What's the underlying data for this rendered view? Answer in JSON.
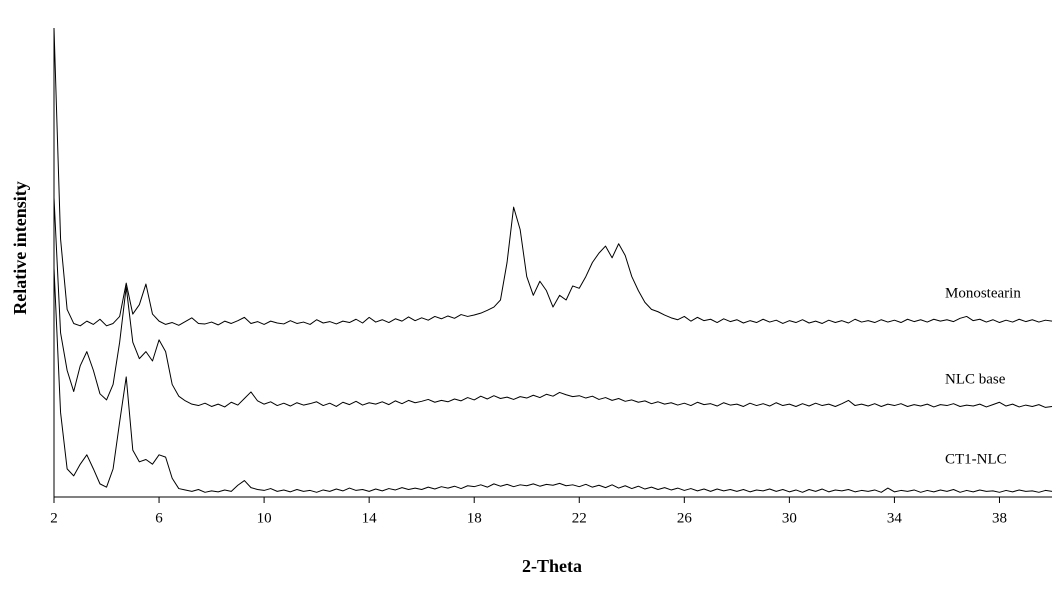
{
  "chart_data": {
    "type": "line",
    "x_label": "2-Theta",
    "y_label": "Relative intensity",
    "xlim": [
      2,
      40
    ],
    "xticks": [
      2,
      6,
      10,
      14,
      18,
      22,
      26,
      30,
      34,
      38
    ],
    "ylim": [
      0,
      100
    ],
    "x": [
      2,
      2.25,
      2.5,
      2.75,
      3,
      3.25,
      3.5,
      3.75,
      4,
      4.25,
      4.5,
      4.75,
      5,
      5.25,
      5.5,
      5.75,
      6,
      6.25,
      6.5,
      6.75,
      7,
      7.25,
      7.5,
      7.75,
      8,
      8.25,
      8.5,
      8.75,
      9,
      9.25,
      9.5,
      9.75,
      10,
      10.25,
      10.5,
      10.75,
      11,
      11.25,
      11.5,
      11.75,
      12,
      12.25,
      12.5,
      12.75,
      13,
      13.25,
      13.5,
      13.75,
      14,
      14.25,
      14.5,
      14.75,
      15,
      15.25,
      15.5,
      15.75,
      16,
      16.25,
      16.5,
      16.75,
      17,
      17.25,
      17.5,
      17.75,
      18,
      18.25,
      18.5,
      18.75,
      19,
      19.25,
      19.5,
      19.75,
      20,
      20.25,
      20.5,
      20.75,
      21,
      21.25,
      21.5,
      21.75,
      22,
      22.25,
      22.5,
      22.75,
      23,
      23.25,
      23.5,
      23.75,
      24,
      24.25,
      24.5,
      24.75,
      25,
      25.25,
      25.5,
      25.75,
      26,
      26.25,
      26.5,
      26.75,
      27,
      27.25,
      27.5,
      27.75,
      28,
      28.25,
      28.5,
      28.75,
      29,
      29.25,
      29.5,
      29.75,
      30,
      30.25,
      30.5,
      30.75,
      31,
      31.25,
      31.5,
      31.75,
      32,
      32.25,
      32.5,
      32.75,
      33,
      33.25,
      33.5,
      33.75,
      34,
      34.25,
      34.5,
      34.75,
      35,
      35.25,
      35.5,
      35.75,
      36,
      36.25,
      36.5,
      36.75,
      37,
      37.25,
      37.5,
      37.75,
      38,
      38.25,
      38.5,
      38.75,
      39,
      39.25,
      39.5,
      39.75,
      40
    ],
    "series": [
      {
        "name": "Monostearin",
        "color": "#000000",
        "values": [
          100,
          55,
          40,
          37,
          36.5,
          37.5,
          36.8,
          37.9,
          36.5,
          37,
          38.5,
          45.6,
          39,
          41,
          45.4,
          39,
          37.5,
          36.8,
          37.2,
          36.6,
          37.4,
          38.2,
          37,
          36.9,
          37.3,
          36.7,
          37.5,
          37,
          37.6,
          38.3,
          37,
          37.4,
          36.8,
          37.5,
          37.1,
          36.9,
          37.6,
          37,
          37.3,
          36.8,
          37.8,
          37.1,
          37.4,
          36.9,
          37.5,
          37.2,
          37.9,
          37.1,
          38.3,
          37.3,
          37.8,
          37.2,
          38,
          37.5,
          38.4,
          37.6,
          38.2,
          37.7,
          38.5,
          38,
          38.6,
          38.1,
          38.9,
          38.5,
          38.8,
          39.2,
          39.8,
          40.5,
          42,
          50,
          61.8,
          57,
          47,
          43,
          46,
          44,
          40.5,
          43,
          42,
          45,
          44.5,
          47,
          50,
          52,
          53.5,
          51,
          54,
          51.5,
          47,
          44,
          41.5,
          40,
          39.5,
          38.8,
          38.2,
          37.8,
          38.5,
          37.5,
          38.3,
          37.6,
          37.9,
          37.2,
          38,
          37.4,
          37.8,
          37.1,
          37.6,
          37.2,
          37.9,
          37.3,
          37.7,
          37,
          37.6,
          37.2,
          37.8,
          37.1,
          37.5,
          37,
          37.7,
          37.2,
          37.6,
          37.1,
          37.9,
          37.3,
          37.6,
          37.2,
          37.8,
          37.3,
          37.7,
          37.2,
          37.9,
          37.4,
          37.8,
          37.3,
          37.9,
          37.5,
          37.8,
          37.4,
          38.1,
          38.5,
          37.6,
          37.9,
          37.3,
          37.8,
          37.2,
          37.7,
          37.3,
          37.9,
          37.4,
          37.8,
          37.3,
          37.7,
          37.5
        ]
      },
      {
        "name": "NLC base",
        "color": "#000000",
        "values": [
          63.8,
          35,
          27,
          22.5,
          28,
          31,
          27,
          22,
          20.7,
          24,
          33,
          44.8,
          33,
          29.5,
          31,
          29,
          33.5,
          31,
          24,
          21.5,
          20.5,
          19.8,
          19.5,
          20,
          19.3,
          19.8,
          19.2,
          20.2,
          19.6,
          21,
          22.4,
          20.5,
          19.8,
          20.3,
          19.5,
          20,
          19.4,
          20.1,
          19.6,
          19.9,
          20.3,
          19.5,
          20,
          19.3,
          20.2,
          19.7,
          20.4,
          19.6,
          20.1,
          19.8,
          20.3,
          19.7,
          20.5,
          19.9,
          20.6,
          20.1,
          20.4,
          20.8,
          20.2,
          20.6,
          20.3,
          20.9,
          20.5,
          21.2,
          20.7,
          21.5,
          20.9,
          21.6,
          21,
          21.3,
          20.8,
          21.4,
          21.1,
          21.7,
          21.2,
          21.9,
          21.5,
          22.3,
          21.8,
          21.4,
          21.6,
          21.1,
          21.5,
          20.8,
          21.2,
          20.6,
          21,
          20.4,
          20.7,
          20.2,
          20.5,
          19.9,
          20.3,
          19.8,
          20.1,
          19.6,
          20,
          19.5,
          20.2,
          19.7,
          19.9,
          19.4,
          20.1,
          19.6,
          19.8,
          19.3,
          20,
          19.5,
          19.9,
          19.4,
          20.1,
          19.5,
          19.8,
          19.3,
          19.9,
          19.4,
          20,
          19.5,
          19.8,
          19.3,
          19.9,
          20.6,
          19.5,
          19.8,
          19.4,
          19.9,
          19.3,
          19.8,
          19.5,
          19.9,
          19.3,
          19.7,
          19.4,
          19.8,
          19.2,
          19.7,
          19.5,
          19.9,
          19.3,
          19.6,
          19.4,
          19.8,
          19.2,
          19.7,
          20.2,
          19.4,
          19.8,
          19.2,
          19.6,
          19.3,
          19.7,
          19.1,
          19.3
        ]
      },
      {
        "name": "CT1-NLC",
        "color": "#000000",
        "values": [
          48.8,
          18,
          6,
          4.5,
          7,
          9,
          6,
          2.8,
          2.1,
          6,
          16,
          25.6,
          10,
          7.5,
          8,
          7,
          9,
          8.5,
          4,
          1.8,
          1.5,
          1.2,
          1.6,
          1,
          1.3,
          1.1,
          1.5,
          1.2,
          2.5,
          3.5,
          2,
          1.6,
          1.4,
          1.8,
          1.2,
          1.5,
          1.1,
          1.6,
          1.2,
          1.4,
          1,
          1.5,
          1.2,
          1.7,
          1.3,
          1.9,
          1.4,
          1.6,
          1.2,
          1.7,
          1.3,
          1.8,
          1.5,
          2,
          1.6,
          1.9,
          1.6,
          2.1,
          1.7,
          2.2,
          1.9,
          2.3,
          1.8,
          2.4,
          2.2,
          2.6,
          2.1,
          2.8,
          2.3,
          2.7,
          2.2,
          2.6,
          2.4,
          2.8,
          2.3,
          2.7,
          2.5,
          2.9,
          2.4,
          2.6,
          2.2,
          2.7,
          2.1,
          2.5,
          2,
          2.6,
          1.9,
          2.4,
          1.8,
          2.3,
          1.7,
          2.1,
          1.6,
          2,
          1.5,
          1.9,
          1.4,
          1.8,
          1.3,
          1.7,
          1.2,
          1.7,
          1.3,
          1.6,
          1.2,
          1.6,
          1.1,
          1.5,
          1.3,
          1.7,
          1.2,
          1.6,
          1.1,
          1.5,
          1,
          1.6,
          1.2,
          1.7,
          1.1,
          1.5,
          1.3,
          1.6,
          1.1,
          1.4,
          1.2,
          1.5,
          1,
          1.9,
          1.1,
          1.4,
          1.2,
          1.5,
          1,
          1.4,
          1.1,
          1.5,
          1.2,
          1.6,
          1,
          1.4,
          1.1,
          1.5,
          1.2,
          1.3,
          1,
          1.4,
          1.1,
          1.5,
          1.2,
          1.3,
          1,
          1.4,
          1.2
        ]
      }
    ]
  }
}
